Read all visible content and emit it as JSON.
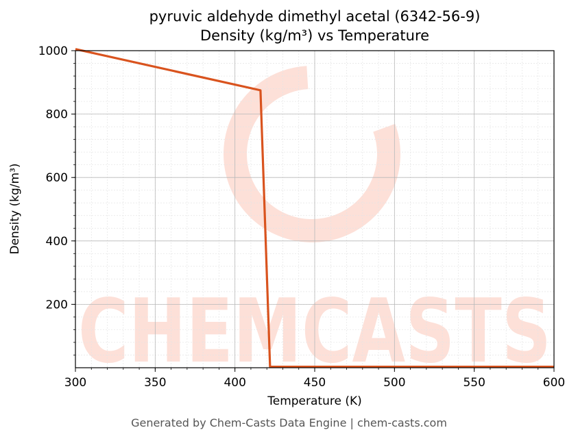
{
  "chart_data": {
    "type": "line",
    "title": "pyruvic aldehyde dimethyl acetal (6342-56-9)",
    "subtitle": "Density (kg/m³) vs Temperature",
    "xlabel": "Temperature (K)",
    "ylabel": "Density (kg/m³)",
    "xlim": [
      300,
      600
    ],
    "ylim": [
      0,
      1000
    ],
    "x_ticks": [
      300,
      350,
      400,
      450,
      500,
      550,
      600
    ],
    "y_ticks": [
      200,
      400,
      600,
      800,
      1000
    ],
    "grid": true,
    "series": [
      {
        "color": "#d9531e",
        "x": [
          300,
          416,
          422,
          600
        ],
        "y": [
          1005,
          875,
          3,
          3
        ]
      }
    ]
  },
  "watermark": {
    "text": "CHEMCASTS",
    "color": "#fde0d8"
  },
  "footer": "Generated by Chem-Casts Data Engine | chem-casts.com"
}
